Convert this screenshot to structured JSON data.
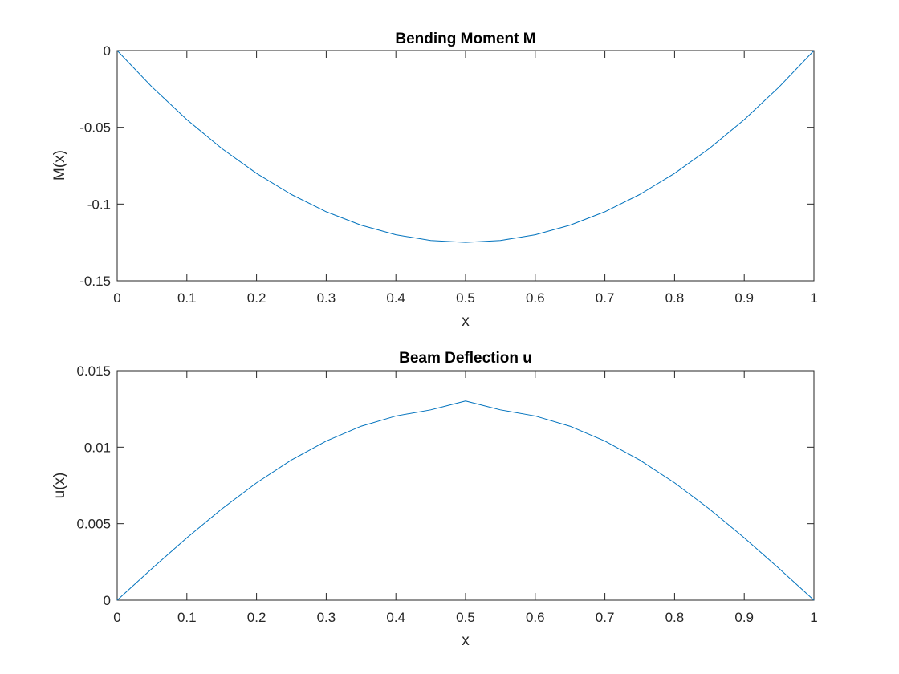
{
  "colors": {
    "series": "#0072BD",
    "axes": "#262626",
    "background": "#ffffff"
  },
  "chart_data": [
    {
      "type": "line",
      "title": "Bending Moment M",
      "xlabel": "x",
      "ylabel": "M(x)",
      "xlim": [
        0,
        1
      ],
      "ylim": [
        -0.15,
        0
      ],
      "grid": false,
      "xticks": [
        0,
        0.1,
        0.2,
        0.3,
        0.4,
        0.5,
        0.6,
        0.7,
        0.8,
        0.9,
        1
      ],
      "xtick_labels": [
        "0",
        "0.1",
        "0.2",
        "0.3",
        "0.4",
        "0.5",
        "0.6",
        "0.7",
        "0.8",
        "0.9",
        "1"
      ],
      "yticks": [
        -0.15,
        -0.1,
        -0.05,
        0
      ],
      "ytick_labels": [
        "-0.15",
        "-0.1",
        "-0.05",
        "0"
      ],
      "series": [
        {
          "x": [
            0,
            0.05,
            0.1,
            0.15,
            0.2,
            0.25,
            0.3,
            0.35,
            0.4,
            0.45,
            0.5,
            0.55,
            0.6,
            0.65,
            0.7,
            0.75,
            0.8,
            0.85,
            0.9,
            0.95,
            1
          ],
          "y": [
            0,
            -0.02375,
            -0.045,
            -0.06375,
            -0.08,
            -0.09375,
            -0.105,
            -0.11375,
            -0.12,
            -0.12375,
            -0.125,
            -0.12375,
            -0.12,
            -0.11375,
            -0.105,
            -0.09375,
            -0.08,
            -0.06375,
            -0.045,
            -0.02375,
            0
          ]
        }
      ]
    },
    {
      "type": "line",
      "title": "Beam Deflection u",
      "xlabel": "x",
      "ylabel": "u(x)",
      "xlim": [
        0,
        1
      ],
      "ylim": [
        0,
        0.015
      ],
      "grid": false,
      "xticks": [
        0,
        0.1,
        0.2,
        0.3,
        0.4,
        0.5,
        0.6,
        0.7,
        0.8,
        0.9,
        1
      ],
      "xtick_labels": [
        "0",
        "0.1",
        "0.2",
        "0.3",
        "0.4",
        "0.5",
        "0.6",
        "0.7",
        "0.8",
        "0.9",
        "1"
      ],
      "yticks": [
        0,
        0.005,
        0.01,
        0.015
      ],
      "ytick_labels": [
        "0",
        "0.005",
        "0.01",
        "0.015"
      ],
      "series": [
        {
          "x": [
            0,
            0.05,
            0.1,
            0.15,
            0.2,
            0.25,
            0.3,
            0.35,
            0.4,
            0.45,
            0.5,
            0.55,
            0.6,
            0.65,
            0.7,
            0.75,
            0.8,
            0.85,
            0.9,
            0.95,
            1
          ],
          "y": [
            0,
            0.00207,
            0.00408,
            0.00596,
            0.00767,
            0.00916,
            0.0104,
            0.01137,
            0.01204,
            0.01244,
            0.01302,
            0.01244,
            0.01204,
            0.01137,
            0.0104,
            0.00916,
            0.00767,
            0.00596,
            0.00408,
            0.00207,
            0
          ]
        }
      ]
    }
  ]
}
